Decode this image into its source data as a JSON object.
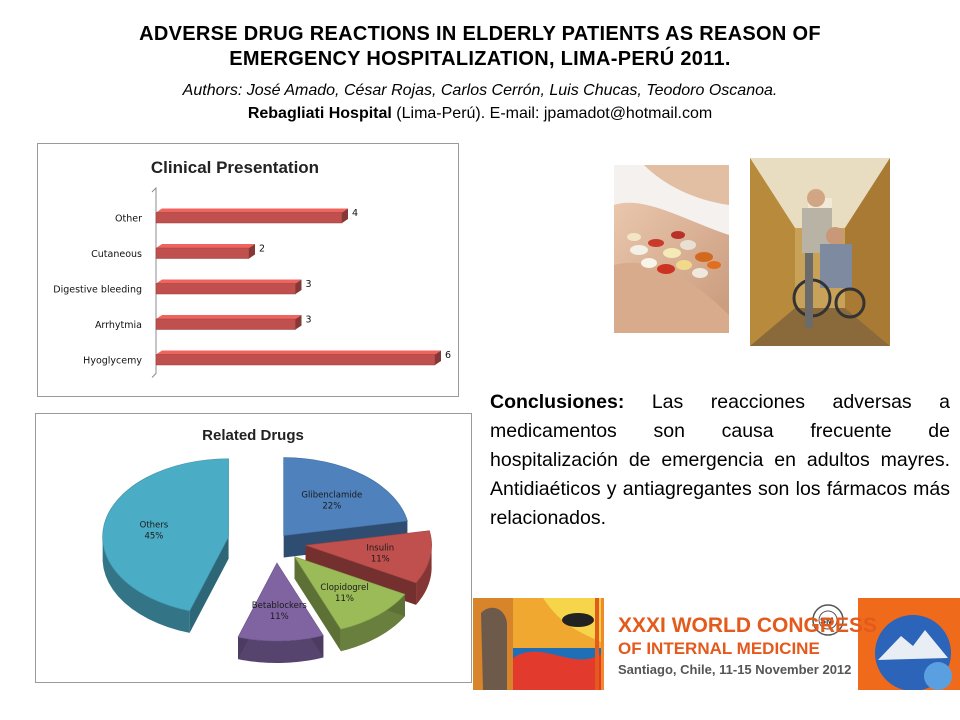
{
  "header": {
    "title_line1": "ADVERSE DRUG REACTIONS IN ELDERLY PATIENTS AS REASON OF",
    "title_line2": "EMERGENCY HOSPITALIZATION, LIMA-PERÚ 2011.",
    "authors": "Authors: José Amado, César Rojas, Carlos Cerrón, Luis Chucas, Teodoro Oscanoa.",
    "hospital": "Rebagliati Hospital",
    "affiliation_rest": " (Lima-Perú). E-mail: jpamadot@hotmail.com"
  },
  "chart_data": [
    {
      "type": "bar",
      "orientation": "horizontal",
      "title": "Clinical Presentation",
      "categories": [
        "Other",
        "Cutaneous",
        "Digestive bleeding",
        "Arrhytmia",
        "Hyoglycemy"
      ],
      "values": [
        4,
        2,
        3,
        3,
        6
      ],
      "value_labels": [
        "4",
        "2",
        "3",
        "3",
        "6"
      ],
      "xlim": [
        0,
        6
      ],
      "color": "#c0504d",
      "grid": false,
      "legend": "none"
    },
    {
      "type": "pie",
      "title": "Related Drugs",
      "slices": [
        {
          "name": "Glibenclamide",
          "value": 22,
          "label": "22%",
          "color": "#4f81bd"
        },
        {
          "name": "Insulin",
          "value": 11,
          "label": "11%",
          "color": "#c0504d"
        },
        {
          "name": "Clopidogrel",
          "value": 11,
          "label": "11%",
          "color": "#9bbb59"
        },
        {
          "name": "Betablockers",
          "value": 11,
          "label": "11%",
          "color": "#8064a2"
        },
        {
          "name": "Others",
          "value": 45,
          "label": "45%",
          "color": "#4bacc6"
        }
      ],
      "style": "3d-exploded",
      "legend": "none"
    }
  ],
  "conclusion": {
    "heading": "Conclusiones:",
    "text": " Las reacciones adversas a medicamentos son causa frecuente de hospitalización de emergencia en adultos mayres. Antidiaéticos y antiagregantes son los fármacos más relacionados."
  },
  "banner": {
    "line1": "XXXI WORLD CONGRESS",
    "line2": "OF INTERNAL MEDICINE",
    "line3": "Santiago, Chile, 11-15 November 2012",
    "accent_color": "#e35a1c"
  },
  "images": {
    "photo1": "pills-in-hands-photo",
    "photo2": "elderly-patient-wheelchair-hallway-photo"
  }
}
